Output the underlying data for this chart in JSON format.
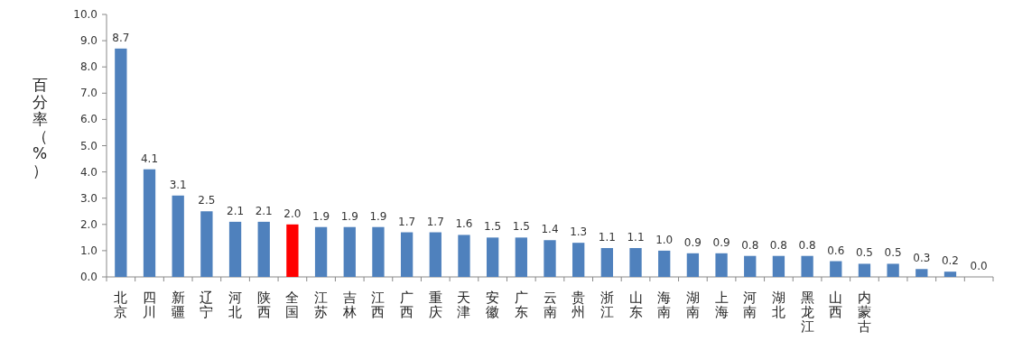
{
  "chart_data": {
    "type": "bar",
    "ylabel": "百分率（%）",
    "categories": [
      "北京",
      "四川",
      "新疆",
      "辽宁",
      "河北",
      "陕西",
      "全国",
      "江苏",
      "吉林",
      "江西",
      "广西",
      "重庆",
      "天津",
      "安徽",
      "广东",
      "云南",
      "贵州",
      "浙江",
      "山东",
      "海南",
      "湖南",
      "上海",
      "河南",
      "湖北",
      "黑龙江",
      "山西",
      "内蒙古",
      null,
      null,
      null,
      null
    ],
    "values": [
      8.7,
      4.1,
      3.1,
      2.5,
      2.1,
      2.1,
      2.0,
      1.9,
      1.9,
      1.9,
      1.7,
      1.7,
      1.6,
      1.5,
      1.5,
      1.4,
      1.3,
      1.1,
      1.1,
      1.0,
      0.9,
      0.9,
      0.8,
      0.8,
      0.8,
      0.6,
      0.5,
      0.5,
      0.3,
      0.2,
      0.0
    ],
    "value_labels": [
      "8.7",
      "4.1",
      "3.1",
      "2.5",
      "2.1",
      "2.1",
      "2.0",
      "1.9",
      "1.9",
      "1.9",
      "1.7",
      "1.7",
      "1.6",
      "1.5",
      "1.5",
      "1.4",
      "1.3",
      "1.1",
      "1.1",
      "1.0",
      "0.9",
      "0.9",
      "0.8",
      "0.8",
      "0.8",
      "0.6",
      "0.5",
      "0.5",
      "0.3",
      "0.2",
      "0.0"
    ],
    "colors": [
      "#4f81bd",
      "#4f81bd",
      "#4f81bd",
      "#4f81bd",
      "#4f81bd",
      "#4f81bd",
      "#ff0000",
      "#4f81bd",
      "#4f81bd",
      "#4f81bd",
      "#4f81bd",
      "#4f81bd",
      "#4f81bd",
      "#4f81bd",
      "#4f81bd",
      "#4f81bd",
      "#4f81bd",
      "#4f81bd",
      "#4f81bd",
      "#4f81bd",
      "#4f81bd",
      "#4f81bd",
      "#4f81bd",
      "#4f81bd",
      "#4f81bd",
      "#4f81bd",
      "#4f81bd",
      "#4f81bd",
      "#4f81bd",
      "#4f81bd",
      "#4f81bd"
    ],
    "ylim": [
      0,
      10
    ],
    "yticks": [
      {
        "value": 0,
        "label": "0.0"
      },
      {
        "value": 1,
        "label": "1.0"
      },
      {
        "value": 2,
        "label": "2.0"
      },
      {
        "value": 3,
        "label": "3.0"
      },
      {
        "value": 4,
        "label": "4.0"
      },
      {
        "value": 5,
        "label": "5.0"
      },
      {
        "value": 6,
        "label": "6.0"
      },
      {
        "value": 7,
        "label": "7.0"
      },
      {
        "value": 8,
        "label": "8.0"
      },
      {
        "value": 9,
        "label": "9.0"
      },
      {
        "value": 10,
        "label": "10.0"
      }
    ],
    "grid": false
  }
}
